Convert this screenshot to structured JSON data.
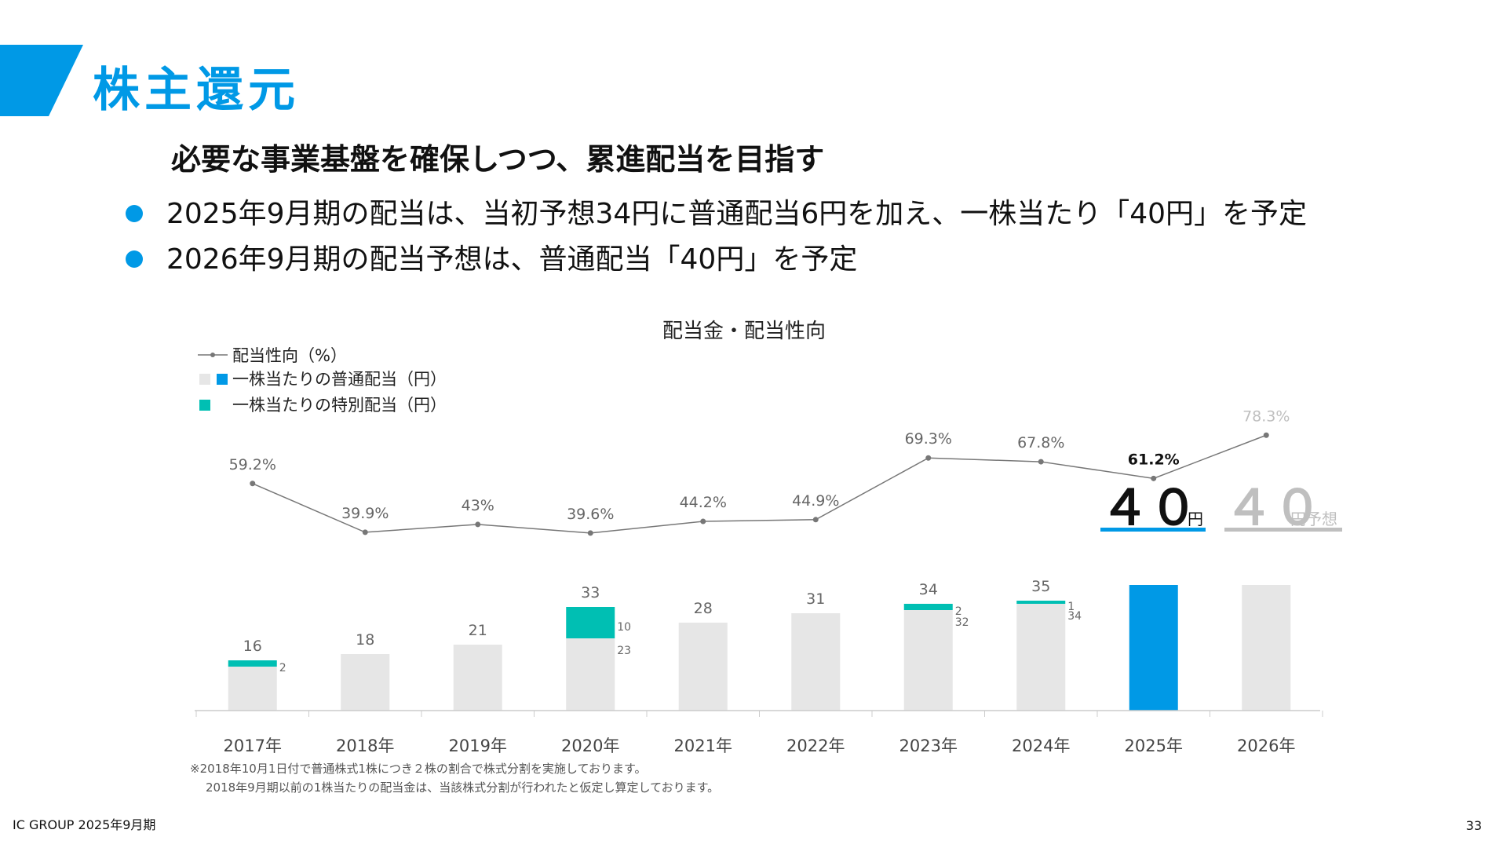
{
  "page_title": "株主還元",
  "headline": "必要な事業基盤を確保しつつ、累進配当を目指す",
  "bullets": [
    "2025年9月期の配当は、当初予想34円に普通配当6円を加え、一株当たり「40円」を予定",
    "2026年9月期の配当予想は、普通配当「40円」を予定"
  ],
  "footnotes": [
    "※2018年10月1日付で普通株式1株につき２株の割合で株式分割を実施しております。",
    "2018年9月期以前の1株当たりの配当金は、当該株式分割が行われたと仮定し算定しております。"
  ],
  "company": "IC GROUP 2025年9月期",
  "page_number": "33",
  "colors": {
    "accent": "#0099e6",
    "regular_bar": "#e6e6e6",
    "special_bar": "#00bfb3",
    "line": "#777777",
    "forecast": "#bfbfbf"
  },
  "chart_data": {
    "type": "bar",
    "title": "配当金・配当性向",
    "legend": {
      "payout_ratio": "配当性向（%）",
      "regular": "一株当たりの普通配当（円）",
      "special": "一株当たりの特別配当（円）"
    },
    "categories": [
      "2017年",
      "2018年",
      "2019年",
      "2020年",
      "2021年",
      "2022年",
      "2023年",
      "2024年",
      "2025年",
      "2026年"
    ],
    "totals": [
      16,
      18,
      21,
      33,
      28,
      31,
      34,
      35,
      40,
      40
    ],
    "regular": [
      14,
      18,
      21,
      23,
      28,
      31,
      32,
      34,
      40,
      40
    ],
    "special": [
      2,
      0,
      0,
      10,
      0,
      0,
      2,
      1,
      0,
      0
    ],
    "regular_labels": [
      "",
      "",
      "",
      "23",
      "",
      "",
      "32",
      "34",
      "",
      ""
    ],
    "special_labels": [
      "2",
      "",
      "",
      "10",
      "",
      "",
      "2",
      "1",
      "",
      ""
    ],
    "total_labels": [
      "16",
      "18",
      "21",
      "33",
      "28",
      "31",
      "34",
      "35",
      "",
      ""
    ],
    "payout_ratio": [
      59.2,
      39.9,
      43,
      39.6,
      44.2,
      44.9,
      69.3,
      67.8,
      61.2,
      78.3
    ],
    "payout_labels": [
      "59.2%",
      "39.9%",
      "43%",
      "39.6%",
      "44.2%",
      "44.9%",
      "69.3%",
      "67.8%",
      "61.2%",
      "78.3%"
    ],
    "highlight": {
      "current": {
        "value": "４０",
        "unit": "円"
      },
      "forecast": {
        "value": "４０",
        "unit": "円予想"
      }
    },
    "grid": false
  }
}
